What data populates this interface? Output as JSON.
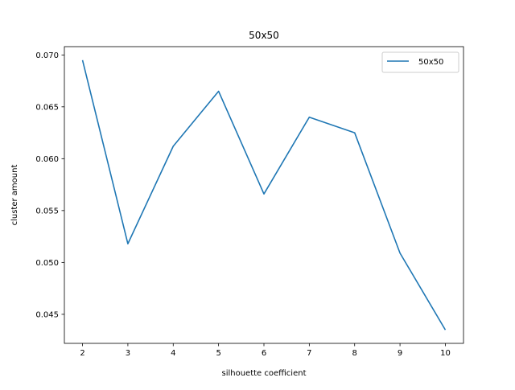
{
  "chart_data": {
    "type": "line",
    "title": "50x50",
    "xlabel": "silhouette coefficient",
    "ylabel": "cluster amount",
    "x": [
      2,
      3,
      4,
      5,
      6,
      7,
      8,
      9,
      10
    ],
    "series": [
      {
        "name": "50x50",
        "color": "#1f77b4",
        "values": [
          0.0695,
          0.0518,
          0.0612,
          0.0665,
          0.0566,
          0.064,
          0.0625,
          0.0509,
          0.0435
        ]
      }
    ],
    "xlim": [
      1.6,
      10.4
    ],
    "ylim": [
      0.0422,
      0.0708
    ],
    "xticks": [
      "2",
      "3",
      "4",
      "5",
      "6",
      "7",
      "8",
      "9",
      "10"
    ],
    "yticks": [
      "0.045",
      "0.050",
      "0.055",
      "0.060",
      "0.065",
      "0.070"
    ],
    "legend": {
      "position": "top-right",
      "entries": [
        "50x50"
      ]
    },
    "grid": false
  }
}
